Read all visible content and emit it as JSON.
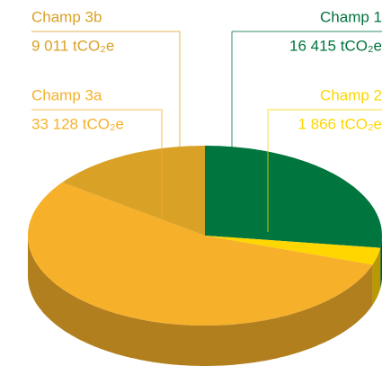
{
  "chart_data": {
    "type": "pie",
    "categories": [
      "Champ 1",
      "Champ 2",
      "Champ 3a",
      "Champ 3b"
    ],
    "values": [
      16415,
      1866,
      33128,
      9011
    ],
    "value_labels": [
      "16 415 tCO₂e",
      "1 866 tCO₂e",
      "33 128 tCO₂e",
      "9 011 tCO₂e"
    ],
    "colors": [
      "#00753e",
      "#ffd600",
      "#f6b02a",
      "#d9a126"
    ]
  }
}
